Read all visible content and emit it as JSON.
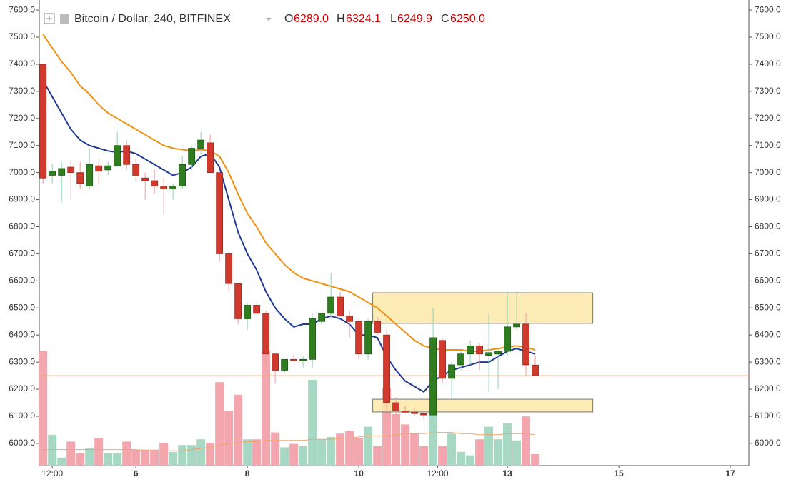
{
  "chart_data": {
    "type": "candlestick",
    "title": "Bitcoin / Dollar, 240, BITFINEX",
    "header_letters": {
      "open": "O",
      "high": "H",
      "low": "L",
      "close": "C"
    },
    "last_value_labels": {
      "open": "6289.0",
      "high": "6324.1",
      "low": "6249.9",
      "close": "6250.0"
    },
    "up_color": "#2f7d1e",
    "down_color": "#d0392b",
    "open": [
      7400,
      6990,
      6990,
      7020,
      7000,
      6950,
      7025,
      7010,
      7025,
      7100,
      7030,
      6980,
      6970,
      6950,
      6940,
      6950,
      7030,
      7090,
      7110,
      7000,
      6700,
      6590,
      6460,
      6510,
      6480,
      6330,
      6270,
      6310,
      6305,
      6310,
      6450,
      6480,
      6540,
      6470,
      6450,
      6330,
      6450,
      6400,
      6150,
      6120,
      6115,
      6110,
      6105,
      6380,
      6240,
      6290,
      6330,
      6360,
      6325,
      6330,
      6340,
      6430,
      6440,
      6289
    ],
    "high": [
      7400,
      7030,
      7040,
      7040,
      7040,
      7090,
      7050,
      7040,
      7150,
      7120,
      7050,
      7000,
      7010,
      6980,
      6960,
      7060,
      7100,
      7150,
      7140,
      7000,
      6700,
      6590,
      6520,
      6520,
      6490,
      6330,
      6310,
      6330,
      6320,
      6480,
      6480,
      6630,
      6560,
      6490,
      6460,
      6460,
      6470,
      6420,
      6170,
      6140,
      6130,
      6115,
      6500,
      6390,
      6300,
      6340,
      6380,
      6370,
      6480,
      6350,
      6560,
      6560,
      6480,
      6324.1
    ],
    "low": [
      6960,
      6960,
      6890,
      6900,
      6940,
      6940,
      6960,
      6990,
      7020,
      7010,
      6970,
      6900,
      6920,
      6850,
      6900,
      6940,
      7010,
      7070,
      7000,
      6670,
      6560,
      6440,
      6420,
      6480,
      6290,
      6220,
      6260,
      6300,
      6280,
      6280,
      6440,
      6460,
      6470,
      6390,
      6310,
      6310,
      6400,
      6120,
      6100,
      6110,
      6100,
      6090,
      6100,
      6220,
      6170,
      6270,
      6290,
      6270,
      6190,
      6200,
      6320,
      6420,
      6250,
      6249.9
    ],
    "close": [
      6980,
      7005,
      7015,
      7000,
      6960,
      7030,
      7005,
      7025,
      7100,
      7030,
      6990,
      6970,
      6950,
      6940,
      6950,
      7030,
      7090,
      7120,
      7000,
      6700,
      6590,
      6460,
      6510,
      6480,
      6330,
      6270,
      6310,
      6305,
      6310,
      6460,
      6480,
      6540,
      6470,
      6450,
      6330,
      6450,
      6410,
      6150,
      6120,
      6115,
      6110,
      6105,
      6390,
      6240,
      6290,
      6330,
      6360,
      6330,
      6335,
      6340,
      6430,
      6440,
      6290,
      6250
    ],
    "volume": [
      100,
      27,
      7,
      21,
      11,
      15,
      24,
      11,
      11,
      21,
      14,
      14,
      14,
      20,
      12,
      18,
      18,
      23,
      20,
      73,
      48,
      62,
      23,
      23,
      100,
      29,
      16,
      19,
      17,
      75,
      23,
      25,
      28,
      30,
      24,
      34,
      17,
      68,
      45,
      36,
      28,
      17,
      58,
      17,
      28,
      12,
      9,
      23,
      34,
      23,
      37,
      22,
      43,
      10
    ],
    "volume_ma": [
      14,
      14,
      14,
      14,
      14,
      14,
      14,
      14,
      14,
      14,
      14,
      13,
      13,
      13,
      13,
      13,
      14,
      15,
      16,
      18,
      19,
      20,
      21,
      21,
      22,
      22,
      22,
      22,
      22,
      23,
      23,
      23,
      24,
      24,
      25,
      26,
      26,
      26,
      27,
      28,
      28,
      28,
      29,
      29,
      29,
      28,
      28,
      27,
      27,
      27,
      28,
      28,
      28,
      27
    ],
    "volume_lim": [
      0,
      100
    ],
    "volume_up_color": "#a6d8c4",
    "volume_down_color": "#f4a6ae",
    "volume_ma_color": "#f2a46a",
    "ma_series": [
      {
        "color": "#1f3a93",
        "values": [
          7340,
          7280,
          7220,
          7160,
          7120,
          7100,
          7090,
          7080,
          7075,
          7080,
          7070,
          7050,
          7030,
          7010,
          6990,
          7000,
          7020,
          7060,
          7070,
          7020,
          6900,
          6780,
          6700,
          6640,
          6560,
          6500,
          6460,
          6430,
          6440,
          6440,
          6460,
          6470,
          6460,
          6440,
          6400,
          6400,
          6390,
          6320,
          6270,
          6230,
          6210,
          6190,
          6230,
          6250,
          6270,
          6280,
          6290,
          6300,
          6300,
          6320,
          6340,
          6350,
          6340,
          6330
        ]
      },
      {
        "color": "#f0900f",
        "values": [
          7510,
          7460,
          7410,
          7370,
          7320,
          7290,
          7250,
          7220,
          7200,
          7180,
          7160,
          7140,
          7120,
          7100,
          7090,
          7085,
          7080,
          7085,
          7080,
          7060,
          7000,
          6920,
          6850,
          6800,
          6740,
          6700,
          6660,
          6630,
          6610,
          6600,
          6590,
          6580,
          6570,
          6560,
          6540,
          6520,
          6500,
          6470,
          6440,
          6410,
          6380,
          6360,
          6350,
          6345,
          6345,
          6345,
          6340,
          6340,
          6345,
          6350,
          6355,
          6360,
          6355,
          6345
        ]
      }
    ],
    "price_line": 6250,
    "price_line_color": "#f0a080",
    "zones": [
      {
        "x": [
          35.5,
          59.2
        ],
        "y": [
          6443,
          6556
        ]
      },
      {
        "x": [
          35.5,
          59.2
        ],
        "y": [
          6116,
          6163
        ]
      }
    ],
    "zone_color": "#fde9a8",
    "xlim": [
      -0.4,
      76
    ],
    "xticks": [
      {
        "value": 1,
        "label": "12:00"
      },
      {
        "value": 10,
        "label": "6"
      },
      {
        "value": 22,
        "label": "8"
      },
      {
        "value": 34,
        "label": "10"
      },
      {
        "value": 42.5,
        "label": "12:00"
      },
      {
        "value": 50,
        "label": "13"
      },
      {
        "value": 62,
        "label": "15"
      },
      {
        "value": 74,
        "label": "17"
      }
    ],
    "ylim": [
      5918,
      7624
    ],
    "yticks": [
      {
        "value": 6000,
        "label": "6000.0"
      },
      {
        "value": 6100,
        "label": "6100.0"
      },
      {
        "value": 6200,
        "label": "6200.0"
      },
      {
        "value": 6300,
        "label": "6300.0"
      },
      {
        "value": 6400,
        "label": "6400.0"
      },
      {
        "value": 6500,
        "label": "6500.0"
      },
      {
        "value": 6600,
        "label": "6600.0"
      },
      {
        "value": 6700,
        "label": "6700.0"
      },
      {
        "value": 6800,
        "label": "6800.0"
      },
      {
        "value": 6900,
        "label": "6900.0"
      },
      {
        "value": 7000,
        "label": "7000.0"
      },
      {
        "value": 7100,
        "label": "7100.0"
      },
      {
        "value": 7200,
        "label": "7200.0"
      },
      {
        "value": 7300,
        "label": "7300.0"
      },
      {
        "value": 7400,
        "label": "7400.0"
      },
      {
        "value": 7500,
        "label": "7500.0"
      },
      {
        "value": 7600,
        "label": "7600.0"
      }
    ]
  }
}
